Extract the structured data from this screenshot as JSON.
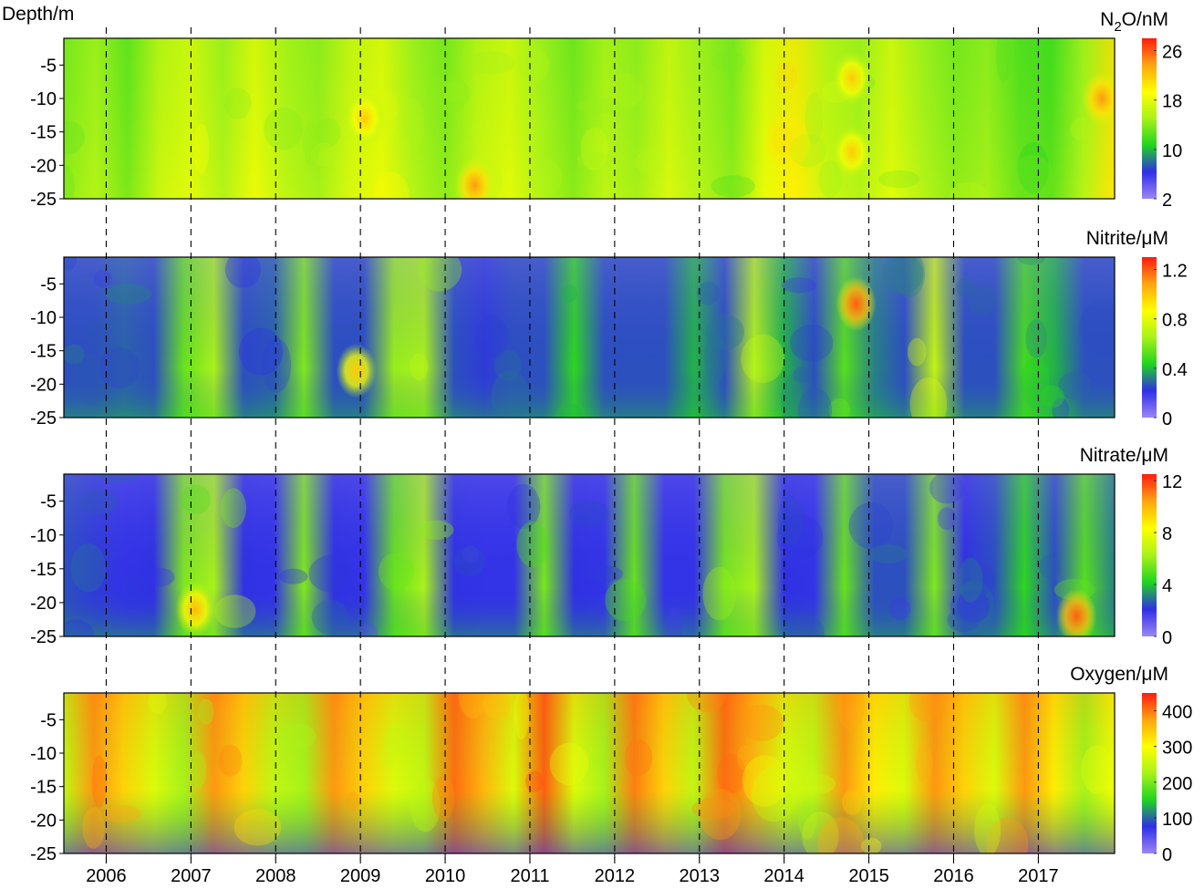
{
  "chart_data": [
    {
      "type": "heatmap",
      "title": "N2O/nM",
      "title_main": "N",
      "title_sub": "2",
      "title_rest": "O/nM",
      "ylabel": "Depth/m",
      "ylim": [
        -25,
        -1
      ],
      "yticks": [
        "-5",
        "-10",
        "-15",
        "-20",
        "-25"
      ],
      "ytick_values": [
        -5,
        -10,
        -15,
        -20,
        -25
      ],
      "colorbar_ticks": [
        "26",
        "18",
        "10",
        "2"
      ],
      "colorbar_values": [
        26,
        18,
        10,
        2
      ],
      "colorbar_range": [
        2,
        28
      ],
      "value_range": [
        2,
        28
      ],
      "hot_spots": [
        {
          "year": 2009.05,
          "depth": -13,
          "value": 22
        },
        {
          "year": 2010.35,
          "depth": -23,
          "value": 24
        },
        {
          "year": 2014.8,
          "depth": -7,
          "value": 22
        },
        {
          "year": 2014.8,
          "depth": -18,
          "value": 22
        },
        {
          "year": 2017.75,
          "depth": -10,
          "value": 24
        }
      ]
    },
    {
      "type": "heatmap",
      "title": "Nitrite/μM",
      "ylim": [
        -25,
        -1
      ],
      "yticks": [
        "-5",
        "-10",
        "-15",
        "-20",
        "-25"
      ],
      "ytick_values": [
        -5,
        -10,
        -15,
        -20,
        -25
      ],
      "colorbar_ticks": [
        "1.2",
        "0.8",
        "0.4",
        "0"
      ],
      "colorbar_values": [
        1.2,
        0.8,
        0.4,
        0
      ],
      "colorbar_range": [
        0,
        1.3
      ],
      "value_range": [
        0,
        1.3
      ],
      "hot_spots": [
        {
          "year": 2008.95,
          "depth": -18,
          "value": 1.0
        },
        {
          "year": 2014.85,
          "depth": -8,
          "value": 1.2
        }
      ]
    },
    {
      "type": "heatmap",
      "title": "Nitrate/μM",
      "ylim": [
        -25,
        -1
      ],
      "yticks": [
        "-5",
        "-10",
        "-15",
        "-20",
        "-25"
      ],
      "ytick_values": [
        -5,
        -10,
        -15,
        -20,
        -25
      ],
      "colorbar_ticks": [
        "12",
        "8",
        "4",
        "0"
      ],
      "colorbar_values": [
        12,
        8,
        4,
        0
      ],
      "colorbar_range": [
        0,
        12.5
      ],
      "value_range": [
        0,
        12.5
      ],
      "hot_spots": [
        {
          "year": 2007.05,
          "depth": -21,
          "value": 10
        },
        {
          "year": 2017.45,
          "depth": -22,
          "value": 11.5
        }
      ]
    },
    {
      "type": "heatmap",
      "title": "Oxygen/μM",
      "ylim": [
        -25,
        -1
      ],
      "yticks": [
        "-5",
        "-10",
        "-15",
        "-20",
        "-25"
      ],
      "ytick_values": [
        -5,
        -10,
        -15,
        -20,
        -25
      ],
      "colorbar_ticks": [
        "400",
        "300",
        "200",
        "100",
        "0"
      ],
      "colorbar_values": [
        400,
        300,
        200,
        100,
        0
      ],
      "colorbar_range": [
        0,
        450
      ],
      "value_range": [
        0,
        450
      ],
      "hot_spots": []
    }
  ],
  "x_axis": {
    "range": [
      2005.5,
      2017.9
    ],
    "ticks": [
      "2006",
      "2007",
      "2008",
      "2009",
      "2010",
      "2011",
      "2012",
      "2013",
      "2014",
      "2015",
      "2016",
      "2017"
    ],
    "tick_values": [
      2006,
      2007,
      2008,
      2009,
      2010,
      2011,
      2012,
      2013,
      2014,
      2015,
      2016,
      2017
    ],
    "year_dividers": "dashed"
  },
  "colormap": [
    "#9b87f5",
    "#2f2fe6",
    "#1fd41f",
    "#a8f21a",
    "#ffff00",
    "#ffa510",
    "#ff1a10"
  ]
}
